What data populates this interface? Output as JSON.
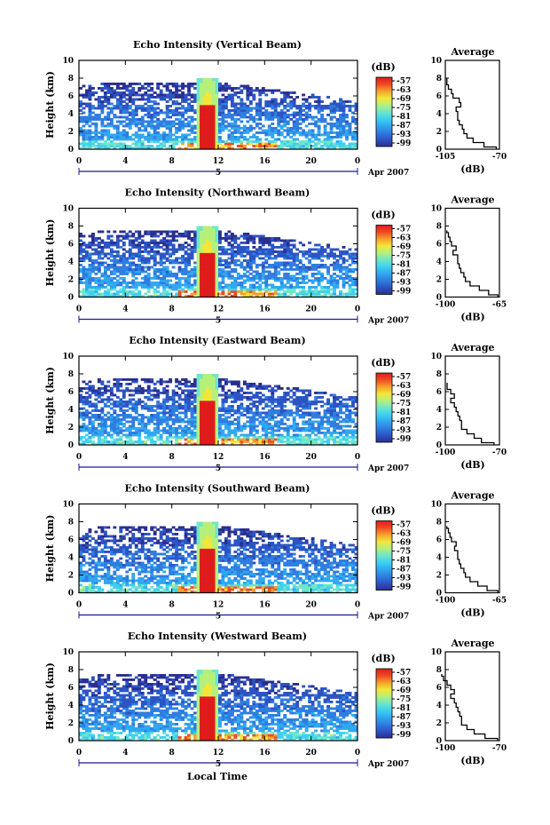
{
  "figure": {
    "date_label": "Apr 2007",
    "day_label": "5",
    "local_time_label": "Local Time",
    "colors": {
      "colormap": [
        "#2b2f8f",
        "#2c54c4",
        "#2f7ee0",
        "#31a8f0",
        "#3fd0f0",
        "#6fe6c8",
        "#b5f07a",
        "#f2e63a",
        "#f6a02c",
        "#ee4a22",
        "#e01b1b"
      ]
    }
  },
  "chart_data": [
    {
      "type": "heatmap",
      "title": "Echo Intensity (Vertical Beam)",
      "ylabel": "Height (km)",
      "xlim": [
        0,
        24
      ],
      "ylim": [
        0,
        10
      ],
      "x_ticks": [
        "0",
        "4",
        "8",
        "12",
        "16",
        "20",
        "0"
      ],
      "y_ticks": [
        "0",
        "2",
        "4",
        "6",
        "8",
        "10"
      ],
      "colorbar": {
        "label": "(dB)",
        "ticks": [
          "-57",
          "-63",
          "-69",
          "-75",
          "-81",
          "-87",
          "-93",
          "-99"
        ]
      },
      "description_values": {
        "convective_cell_time_h": 11,
        "cell_top_km": 8
      },
      "average_profile": {
        "title": "Average",
        "xlabel": "(dB)",
        "xlim": [
          -105,
          -70
        ],
        "x_ticks": [
          "-105",
          "-70"
        ],
        "y_ticks": [
          "0",
          "2",
          "4",
          "6",
          "8",
          "10"
        ],
        "heights_km": [
          0,
          0.5,
          1,
          1.5,
          2,
          2.5,
          3,
          3.5,
          4,
          4.5,
          5,
          5.5,
          6,
          6.5,
          7,
          7.5,
          8
        ],
        "values_db": [
          -72,
          -80,
          -87,
          -91,
          -93,
          -94,
          -96,
          -97,
          -97,
          -98,
          -95,
          -96,
          -100,
          -101,
          -103,
          -104,
          -104
        ]
      }
    },
    {
      "type": "heatmap",
      "title": "Echo Intensity (Northward Beam)",
      "ylabel": "Height (km)",
      "xlim": [
        0,
        24
      ],
      "ylim": [
        0,
        10
      ],
      "x_ticks": [
        "0",
        "4",
        "8",
        "12",
        "16",
        "20",
        "0"
      ],
      "y_ticks": [
        "0",
        "2",
        "4",
        "6",
        "8",
        "10"
      ],
      "colorbar": {
        "label": "(dB)",
        "ticks": [
          "-57",
          "-63",
          "-69",
          "-75",
          "-81",
          "-87",
          "-93",
          "-99"
        ]
      },
      "average_profile": {
        "title": "Average",
        "xlabel": "(dB)",
        "xlim": [
          -100,
          -65
        ],
        "x_ticks": [
          "-100",
          "-65"
        ],
        "y_ticks": [
          "0",
          "2",
          "4",
          "6",
          "8",
          "10"
        ],
        "heights_km": [
          0,
          0.5,
          1,
          1.5,
          2,
          2.5,
          3,
          3.5,
          4,
          4.5,
          5,
          5.5,
          6,
          6.5,
          7,
          7.5
        ],
        "values_db": [
          -66,
          -72,
          -78,
          -84,
          -87,
          -88,
          -90,
          -91,
          -92,
          -92,
          -95,
          -93,
          -96,
          -97,
          -98,
          -99
        ]
      }
    },
    {
      "type": "heatmap",
      "title": "Echo Intensity (Eastward Beam)",
      "ylabel": "Height (km)",
      "xlim": [
        0,
        24
      ],
      "ylim": [
        0,
        10
      ],
      "x_ticks": [
        "0",
        "4",
        "8",
        "12",
        "16",
        "20",
        "0"
      ],
      "y_ticks": [
        "0",
        "2",
        "4",
        "6",
        "8",
        "10"
      ],
      "colorbar": {
        "label": "(dB)",
        "ticks": [
          "-57",
          "-63",
          "-69",
          "-75",
          "-81",
          "-87",
          "-93",
          "-99"
        ]
      },
      "average_profile": {
        "title": "Average",
        "xlabel": "(dB)",
        "xlim": [
          -100,
          -70
        ],
        "x_ticks": [
          "-100",
          "-70"
        ],
        "y_ticks": [
          "0",
          "2",
          "4",
          "6",
          "8",
          "10"
        ],
        "heights_km": [
          0,
          0.5,
          1,
          1.5,
          2,
          2.5,
          3,
          3.5,
          4,
          4.5,
          5,
          5.5,
          6,
          6.5,
          7
        ],
        "values_db": [
          -73,
          -80,
          -84,
          -88,
          -91,
          -91,
          -92,
          -93,
          -94,
          -95,
          -97,
          -95,
          -97,
          -99,
          -99
        ]
      }
    },
    {
      "type": "heatmap",
      "title": "Echo Intensity (Southward Beam)",
      "ylabel": "Height (km)",
      "xlim": [
        0,
        24
      ],
      "ylim": [
        0,
        10
      ],
      "x_ticks": [
        "0",
        "4",
        "8",
        "12",
        "16",
        "20",
        "0"
      ],
      "y_ticks": [
        "0",
        "2",
        "4",
        "6",
        "8",
        "10"
      ],
      "colorbar": {
        "label": "(dB)",
        "ticks": [
          "-57",
          "-63",
          "-69",
          "-75",
          "-81",
          "-87",
          "-93",
          "-99"
        ]
      },
      "average_profile": {
        "title": "Average",
        "xlabel": "(dB)",
        "xlim": [
          -100,
          -65
        ],
        "x_ticks": [
          "-100",
          "-65"
        ],
        "y_ticks": [
          "0",
          "2",
          "4",
          "6",
          "8",
          "10"
        ],
        "heights_km": [
          0,
          0.5,
          1,
          1.5,
          2,
          2.5,
          3,
          3.5,
          4,
          4.5,
          5,
          5.5,
          6,
          6.5,
          7,
          7.5
        ],
        "values_db": [
          -66,
          -73,
          -79,
          -84,
          -87,
          -88,
          -90,
          -91,
          -92,
          -92,
          -94,
          -93,
          -96,
          -97,
          -98,
          -99
        ]
      }
    },
    {
      "type": "heatmap",
      "title": "Echo Intensity (Westward Beam)",
      "ylabel": "Height (km)",
      "xlim": [
        0,
        24
      ],
      "ylim": [
        0,
        10
      ],
      "x_ticks": [
        "0",
        "4",
        "8",
        "12",
        "16",
        "20",
        "0"
      ],
      "y_ticks": [
        "0",
        "2",
        "4",
        "6",
        "8",
        "10"
      ],
      "colorbar": {
        "label": "(dB)",
        "ticks": [
          "-57",
          "-63",
          "-69",
          "-75",
          "-81",
          "-87",
          "-93",
          "-99"
        ]
      },
      "average_profile": {
        "title": "Average",
        "xlabel": "(dB)",
        "xlim": [
          -100,
          -70
        ],
        "x_ticks": [
          "-100",
          "-70"
        ],
        "y_ticks": [
          "0",
          "2",
          "4",
          "6",
          "8",
          "10"
        ],
        "heights_km": [
          0,
          0.5,
          1,
          1.5,
          2,
          2.5,
          3,
          3.5,
          4,
          4.5,
          5,
          5.5,
          6,
          6.5,
          7,
          7.5
        ],
        "values_db": [
          -71,
          -78,
          -84,
          -88,
          -91,
          -91,
          -92,
          -93,
          -94,
          -95,
          -97,
          -95,
          -97,
          -99,
          -101,
          -102
        ]
      }
    }
  ]
}
